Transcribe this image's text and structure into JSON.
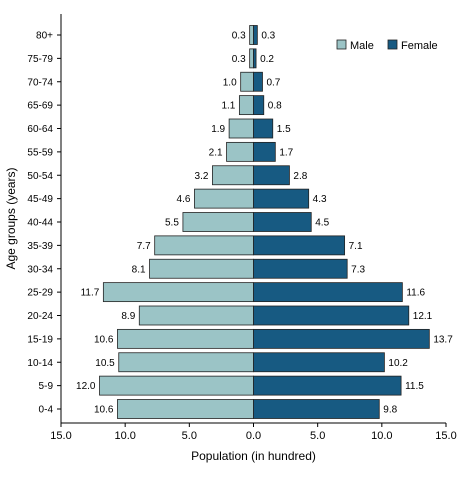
{
  "chart_data": {
    "type": "bar",
    "orientation": "horizontal",
    "layout": "population-pyramid",
    "categories": [
      "0-4",
      "5-9",
      "10-14",
      "15-19",
      "20-24",
      "25-29",
      "30-34",
      "35-39",
      "40-44",
      "45-49",
      "50-54",
      "55-59",
      "60-64",
      "65-69",
      "70-74",
      "75-79",
      "80+"
    ],
    "series": [
      {
        "name": "Male",
        "direction": "left",
        "color": "#9bc4c6",
        "values": [
          10.6,
          12.0,
          10.5,
          10.6,
          8.9,
          11.7,
          8.1,
          7.7,
          5.5,
          4.6,
          3.2,
          2.1,
          1.9,
          1.1,
          1.0,
          0.3,
          0.3
        ]
      },
      {
        "name": "Female",
        "direction": "right",
        "color": "#175a82",
        "values": [
          9.8,
          11.5,
          10.2,
          13.7,
          12.1,
          11.6,
          7.3,
          7.1,
          4.5,
          4.3,
          2.8,
          1.7,
          1.5,
          0.8,
          0.7,
          0.2,
          0.3
        ]
      }
    ],
    "value_labels": {
      "Male": [
        "10.6",
        "12.0",
        "10.5",
        "10.6",
        "8.9",
        "11.7",
        "8.1",
        "7.7",
        "5.5",
        "4.6",
        "3.2",
        "2.1",
        "1.9",
        "1.1",
        "1.0",
        "0.3",
        "0.3"
      ],
      "Female": [
        "9.8",
        "11.5",
        "10.2",
        "13.7",
        "12.1",
        "11.6",
        "7.3",
        "7.1",
        "4.5",
        "4.3",
        "2.8",
        "1.7",
        "1.5",
        "0.8",
        "0.7",
        "0.2",
        "0.3"
      ]
    },
    "xticks": [
      {
        "value": -15,
        "label": "15.0"
      },
      {
        "value": -10,
        "label": "10.0"
      },
      {
        "value": -5,
        "label": "5.0"
      },
      {
        "value": 0,
        "label": "0.0"
      },
      {
        "value": 5,
        "label": "5.0"
      },
      {
        "value": 10,
        "label": "10.0"
      },
      {
        "value": 15,
        "label": "15.0"
      }
    ],
    "xlim": [
      -15,
      15
    ],
    "xlabel": "Population (in hundred)",
    "ylabel": "Age groups (years)",
    "title": "",
    "grid": false,
    "legend_position": "top-right",
    "bar_stroke": "#222222"
  }
}
